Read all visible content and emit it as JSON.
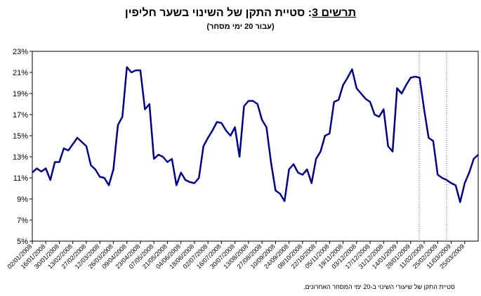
{
  "chart_data": {
    "type": "line",
    "title_label": "תרשים 3",
    "title": ": סטיית התקן של השינוי בשער חליפין",
    "subtitle": "(עבור 20 ימי מסחר)",
    "note": "סטיית התקן של שיעורי השינוי ב-20 ימי המסחר האחרונים.",
    "categories": [
      "02/01/2008",
      null,
      null,
      "16/01/2008",
      null,
      null,
      "30/01/2008",
      null,
      null,
      "13/02/2008",
      null,
      null,
      "27/02/2008",
      null,
      null,
      "12/03/2008",
      null,
      null,
      "26/03/2008",
      null,
      null,
      "09/04/2008",
      null,
      null,
      "23/04/2008",
      null,
      null,
      "07/05/2008",
      null,
      null,
      "21/05/2008",
      null,
      null,
      "04/06/2008",
      null,
      null,
      "18/06/2008",
      null,
      null,
      "02/07/2008",
      null,
      null,
      "16/07/2008",
      null,
      null,
      "30/07/2008",
      null,
      null,
      "13/08/2008",
      null,
      null,
      "27/08/2008",
      null,
      null,
      "10/09/2008",
      null,
      null,
      "24/09/2008",
      null,
      null,
      "08/10/2008",
      null,
      null,
      "22/10/2008",
      null,
      null,
      "05/11/2008",
      null,
      null,
      "19/11/2008",
      null,
      null,
      "03/12/2008",
      null,
      null,
      "17/12/2008",
      null,
      null,
      "31/12/2008",
      null,
      null,
      "14/01/2009",
      null,
      null,
      "28/01/2009",
      null,
      null,
      "11/02/2009",
      null,
      null,
      "25/02/2009",
      null,
      null,
      "11/03/2009",
      null,
      null,
      "25/03/2009",
      null,
      null,
      null
    ],
    "series": [
      {
        "color": "#000080",
        "values": [
          11.5,
          11.9,
          11.6,
          11.9,
          10.8,
          12.5,
          12.5,
          13.8,
          13.6,
          14.2,
          14.8,
          14.4,
          14.0,
          12.2,
          11.8,
          11.1,
          11.0,
          10.3,
          11.8,
          16.0,
          16.8,
          21.5,
          21.0,
          21.2,
          21.2,
          17.5,
          18.0,
          12.8,
          13.2,
          13.0,
          12.5,
          12.8,
          10.3,
          11.5,
          10.8,
          10.6,
          10.5,
          11.0,
          14.0,
          14.8,
          15.5,
          16.3,
          16.2,
          15.5,
          15.0,
          15.8,
          13.0,
          17.8,
          18.3,
          18.3,
          18.0,
          16.5,
          15.8,
          12.5,
          9.8,
          9.5,
          8.8,
          11.8,
          12.3,
          11.5,
          11.3,
          11.8,
          10.5,
          12.8,
          13.5,
          15.0,
          15.2,
          18.2,
          18.4,
          19.8,
          20.5,
          21.3,
          19.5,
          19.0,
          18.5,
          18.2,
          17.0,
          16.8,
          17.5,
          14.0,
          13.5,
          19.5,
          19.0,
          19.8,
          20.5,
          20.6,
          20.5,
          17.5,
          14.8,
          14.5,
          11.3,
          11.0,
          10.8,
          10.5,
          10.3,
          8.7,
          10.5,
          11.5,
          12.8,
          13.2
        ]
      }
    ],
    "ylim": [
      5,
      23
    ],
    "yticks": [
      {
        "value": 5,
        "label": "5%"
      },
      {
        "value": 7,
        "label": "7%"
      },
      {
        "value": 9,
        "label": "9%"
      },
      {
        "value": 11,
        "label": "11%"
      },
      {
        "value": 13,
        "label": "13%"
      },
      {
        "value": 15,
        "label": "15%"
      },
      {
        "value": 17,
        "label": "17%"
      },
      {
        "value": 19,
        "label": "19%"
      },
      {
        "value": 21,
        "label": "21%"
      },
      {
        "value": 23,
        "label": "23%"
      }
    ]
  }
}
